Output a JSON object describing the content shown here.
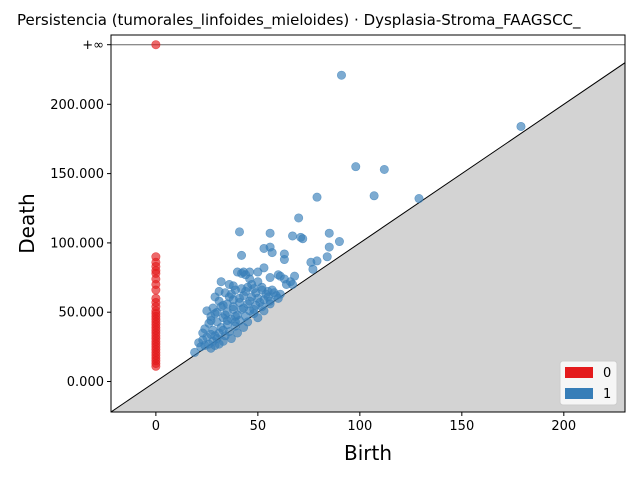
{
  "chart_data": {
    "type": "scatter",
    "title": "Persistencia (tumorales_linfoides_mieloides) · Dysplasia-Stroma_FAAGSCC_",
    "xlabel": "Birth",
    "ylabel": "Death",
    "xlim": [
      -22,
      230
    ],
    "ylim": [
      -22000,
      250000
    ],
    "x_ticks": [
      0,
      50,
      100,
      150,
      200
    ],
    "x_tick_labels": [
      "0",
      "50",
      "100",
      "150",
      "200"
    ],
    "y_ticks": [
      0,
      50000,
      100000,
      150000,
      200000
    ],
    "y_tick_labels": [
      "0.000",
      "50.000",
      "100.000",
      "150.000",
      "200.000"
    ],
    "infinity_label": "+∞",
    "infinity_level": 243000,
    "diagonal": true,
    "grid": false,
    "legend_position": "lower-right",
    "series": [
      {
        "name": "0",
        "color": "#e41a1c",
        "points": [
          [
            0,
            243000
          ],
          [
            0,
            90000
          ],
          [
            0,
            86000
          ],
          [
            0,
            83000
          ],
          [
            0,
            80000
          ],
          [
            0,
            78000
          ],
          [
            0,
            74000
          ],
          [
            0,
            70000
          ],
          [
            0,
            66000
          ],
          [
            0,
            60000
          ],
          [
            0,
            57000
          ],
          [
            0,
            54000
          ],
          [
            0,
            51000
          ],
          [
            0,
            49000
          ],
          [
            0,
            47000
          ],
          [
            0,
            45000
          ],
          [
            0,
            43000
          ],
          [
            0,
            41000
          ],
          [
            0,
            39000
          ],
          [
            0,
            37000
          ],
          [
            0,
            35000
          ],
          [
            0,
            33000
          ],
          [
            0,
            31000
          ],
          [
            0,
            29000
          ],
          [
            0,
            27000
          ],
          [
            0,
            25000
          ],
          [
            0,
            23000
          ],
          [
            0,
            21000
          ],
          [
            0,
            19000
          ],
          [
            0,
            17000
          ],
          [
            0,
            15000
          ],
          [
            0,
            13000
          ],
          [
            0,
            11000
          ]
        ]
      },
      {
        "name": "1",
        "color": "#377eb8",
        "points": [
          [
            91,
            221000
          ],
          [
            179,
            184000
          ],
          [
            98,
            155000
          ],
          [
            112,
            153000
          ],
          [
            107,
            134000
          ],
          [
            79,
            133000
          ],
          [
            129,
            132000
          ],
          [
            70,
            118000
          ],
          [
            41,
            108000
          ],
          [
            56,
            107000
          ],
          [
            85,
            107000
          ],
          [
            67,
            105000
          ],
          [
            71,
            104000
          ],
          [
            72,
            103000
          ],
          [
            90,
            101000
          ],
          [
            56,
            97000
          ],
          [
            85,
            97000
          ],
          [
            53,
            96000
          ],
          [
            57,
            93000
          ],
          [
            63,
            92000
          ],
          [
            42,
            91000
          ],
          [
            84,
            90000
          ],
          [
            63,
            88000
          ],
          [
            79,
            87000
          ],
          [
            76,
            86000
          ],
          [
            53,
            82000
          ],
          [
            77,
            81000
          ],
          [
            40,
            79000
          ],
          [
            43,
            79000
          ],
          [
            46,
            79000
          ],
          [
            50,
            79000
          ],
          [
            42,
            78000
          ],
          [
            44,
            77000
          ],
          [
            60,
            77000
          ],
          [
            61,
            76000
          ],
          [
            68,
            76000
          ],
          [
            56,
            75000
          ],
          [
            63,
            74000
          ],
          [
            66,
            72000
          ],
          [
            32,
            72000
          ],
          [
            64,
            70000
          ],
          [
            36,
            70000
          ],
          [
            67,
            70000
          ],
          [
            38,
            69000
          ],
          [
            45,
            68000
          ],
          [
            48,
            67000
          ],
          [
            52,
            66000
          ],
          [
            55,
            65000
          ],
          [
            31,
            65000
          ],
          [
            58,
            64000
          ],
          [
            34,
            64000
          ],
          [
            61,
            63000
          ],
          [
            43,
            62000
          ],
          [
            47,
            61000
          ],
          [
            29,
            61000
          ],
          [
            50,
            60000
          ],
          [
            38,
            59000
          ],
          [
            53,
            59000
          ],
          [
            56,
            58000
          ],
          [
            41,
            57000
          ],
          [
            35,
            56000
          ],
          [
            45,
            56000
          ],
          [
            49,
            55000
          ],
          [
            52,
            54000
          ],
          [
            32,
            54000
          ],
          [
            28,
            53000
          ],
          [
            38,
            52000
          ],
          [
            42,
            52000
          ],
          [
            46,
            51000
          ],
          [
            25,
            51000
          ],
          [
            30,
            50000
          ],
          [
            35,
            50000
          ],
          [
            48,
            49000
          ],
          [
            40,
            48000
          ],
          [
            44,
            47000
          ],
          [
            27,
            47000
          ],
          [
            33,
            46000
          ],
          [
            37,
            45000
          ],
          [
            41,
            44000
          ],
          [
            30,
            43000
          ],
          [
            45,
            43000
          ],
          [
            26,
            42000
          ],
          [
            35,
            41000
          ],
          [
            39,
            40000
          ],
          [
            32,
            39000
          ],
          [
            43,
            39000
          ],
          [
            24,
            38000
          ],
          [
            28,
            37000
          ],
          [
            36,
            36000
          ],
          [
            31,
            35000
          ],
          [
            40,
            35000
          ],
          [
            27,
            34000
          ],
          [
            34,
            33000
          ],
          [
            25,
            32000
          ],
          [
            30,
            31000
          ],
          [
            37,
            31000
          ],
          [
            23,
            30000
          ],
          [
            28,
            29000
          ],
          [
            33,
            29000
          ],
          [
            21,
            28000
          ],
          [
            26,
            27000
          ],
          [
            31,
            27000
          ],
          [
            24,
            26000
          ],
          [
            29,
            26000
          ],
          [
            22,
            25000
          ],
          [
            27,
            24000
          ],
          [
            19,
            21000
          ],
          [
            39,
            66000
          ],
          [
            44,
            65000
          ],
          [
            49,
            64000
          ],
          [
            54,
            63000
          ],
          [
            59,
            62000
          ],
          [
            36,
            61000
          ],
          [
            41,
            60000
          ],
          [
            46,
            58000
          ],
          [
            51,
            57000
          ],
          [
            56,
            56000
          ],
          [
            33,
            55000
          ],
          [
            38,
            54000
          ],
          [
            43,
            53000
          ],
          [
            48,
            52000
          ],
          [
            53,
            51000
          ],
          [
            29,
            49000
          ],
          [
            34,
            48000
          ],
          [
            39,
            47000
          ],
          [
            50,
            46000
          ],
          [
            55,
            61000
          ],
          [
            60,
            60000
          ],
          [
            47,
            70000
          ],
          [
            52,
            68000
          ],
          [
            57,
            66000
          ],
          [
            42,
            67000
          ],
          [
            37,
            63000
          ],
          [
            31,
            58000
          ],
          [
            27,
            44000
          ],
          [
            46,
            74000
          ],
          [
            50,
            72000
          ],
          [
            39,
            43000
          ],
          [
            33,
            37000
          ],
          [
            35,
            44000
          ],
          [
            29,
            33000
          ],
          [
            23,
            35000
          ]
        ]
      }
    ]
  }
}
